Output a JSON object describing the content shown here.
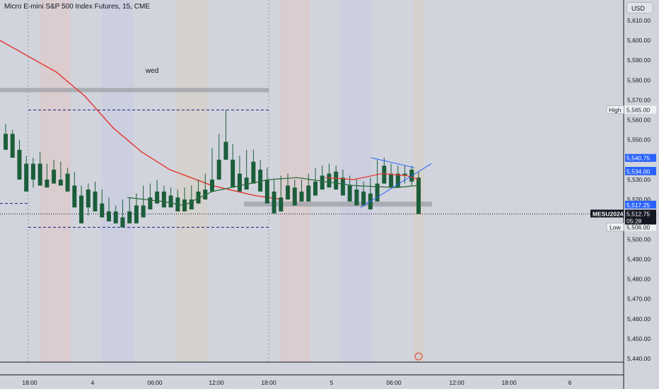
{
  "header": {
    "title": "Micro E-mini S&P 500 Index Futures, 15, CME",
    "currency_button": "USD"
  },
  "annotations": {
    "session_label": "wed",
    "high_label": "High",
    "low_label": "Low",
    "symbol_tag": "MESU2024",
    "countdown": "05:28"
  },
  "colors": {
    "background": "#d1d4dc",
    "up_candle": "#1b5e3a",
    "down_candle": "#1b5e3a",
    "ma_red": "#e53935",
    "ma_green": "#2e6b3a",
    "box_gray": "#9a9ca3",
    "trend_blue": "#2962ff",
    "tag_blue": "#2962ff",
    "tag_black": "#131722",
    "band_red": "#dcc9cc",
    "band_blue": "#c9cde0",
    "band_tan": "#d6d0c8"
  },
  "chart_data": {
    "type": "candlestick",
    "title": "Micro E-mini S&P 500 Index Futures, 15, CME",
    "y_axis": {
      "min": 5440,
      "max": 5610,
      "tick_step": 10,
      "ticks": [
        "5,610.00",
        "5,600.00",
        "5,590.00",
        "5,580.00",
        "5,570.00",
        "5,560.00",
        "5,550.00",
        "5,540.00",
        "5,530.00",
        "5,520.00",
        "5,510.00",
        "5,500.00",
        "5,490.00",
        "5,480.00",
        "5,470.00",
        "5,460.00",
        "5,450.00",
        "5,440.00"
      ]
    },
    "x_axis": {
      "ticks": [
        "18:00",
        "4",
        "06:00",
        "12:00",
        "18:00",
        "5",
        "06:00",
        "12:00",
        "18:00",
        "6"
      ]
    },
    "price_tags": [
      {
        "label": "5,565.00",
        "value": 5565,
        "style": "plain"
      },
      {
        "label": "5,540.75",
        "value": 5540.75,
        "style": "blue"
      },
      {
        "label": "5,534.25",
        "value": 5534.25,
        "style": "blue"
      },
      {
        "label": "5,534.00",
        "value": 5534,
        "style": "blue"
      },
      {
        "label": "5,517.25",
        "value": 5517.25,
        "style": "blue"
      },
      {
        "label": "5,512.75",
        "value": 5512.75,
        "style": "black"
      },
      {
        "label": "5,506.00",
        "value": 5506,
        "style": "plain"
      }
    ],
    "levels": {
      "high": 5565,
      "low": 5506,
      "last": 5512.75
    },
    "candles": [
      [
        5553,
        5558,
        5548,
        5545
      ],
      [
        5553,
        5555,
        5545,
        5541
      ],
      [
        5545,
        5550,
        5538,
        5530
      ],
      [
        5538,
        5542,
        5530,
        5524
      ],
      [
        5530,
        5541,
        5526,
        5538
      ],
      [
        5538,
        5544,
        5530,
        5527
      ],
      [
        5530,
        5538,
        5527,
        5526
      ],
      [
        5535,
        5540,
        5530,
        5528
      ],
      [
        5530,
        5539,
        5528,
        5527
      ],
      [
        5533,
        5536,
        5527,
        5524
      ],
      [
        5527,
        5534,
        5522,
        5516
      ],
      [
        5522,
        5527,
        5514,
        5508
      ],
      [
        5516,
        5528,
        5512,
        5525
      ],
      [
        5524,
        5529,
        5517,
        5514
      ],
      [
        5518,
        5525,
        5514,
        5511
      ],
      [
        5514,
        5521,
        5510,
        5509
      ],
      [
        5514,
        5517,
        5509,
        5508
      ],
      [
        5511,
        5520,
        5508,
        5506
      ],
      [
        5514,
        5521,
        5510,
        5508
      ],
      [
        5517,
        5523,
        5511,
        5508
      ],
      [
        5517,
        5527,
        5514,
        5511
      ],
      [
        5521,
        5528,
        5518,
        5515
      ],
      [
        5524,
        5530,
        5521,
        5518
      ],
      [
        5524,
        5527,
        5520,
        5516
      ],
      [
        5522,
        5526,
        5519,
        5516
      ],
      [
        5521,
        5525,
        5517,
        5514
      ],
      [
        5520,
        5526,
        5517,
        5514
      ],
      [
        5520,
        5527,
        5518,
        5515
      ],
      [
        5524,
        5530,
        5521,
        5518
      ],
      [
        5525,
        5533,
        5522,
        5520
      ],
      [
        5530,
        5546,
        5527,
        5524
      ],
      [
        5540,
        5553,
        5536,
        5530
      ],
      [
        5549,
        5565,
        5545,
        5540
      ],
      [
        5540,
        5548,
        5530,
        5526
      ],
      [
        5533,
        5542,
        5528,
        5524
      ],
      [
        5531,
        5545,
        5528,
        5525
      ],
      [
        5539,
        5545,
        5532,
        5528
      ],
      [
        5535,
        5540,
        5528,
        5524
      ],
      [
        5530,
        5536,
        5524,
        5518
      ],
      [
        5524,
        5530,
        5517,
        5513
      ],
      [
        5521,
        5532,
        5518,
        5514
      ],
      [
        5527,
        5533,
        5522,
        5520
      ],
      [
        5526,
        5530,
        5520,
        5517
      ],
      [
        5524,
        5530,
        5521,
        5519
      ],
      [
        5527,
        5533,
        5523,
        5519
      ],
      [
        5529,
        5536,
        5526,
        5522
      ],
      [
        5532,
        5537,
        5528,
        5525
      ],
      [
        5533,
        5538,
        5529,
        5526
      ],
      [
        5534,
        5537,
        5528,
        5525
      ],
      [
        5531,
        5535,
        5525,
        5522
      ],
      [
        5527,
        5532,
        5522,
        5519
      ],
      [
        5525,
        5530,
        5520,
        5517
      ],
      [
        5524,
        5529,
        5519,
        5517
      ],
      [
        5523,
        5531,
        5519,
        5515
      ],
      [
        5528,
        5540,
        5525,
        5519
      ],
      [
        5537,
        5541,
        5530,
        5528
      ],
      [
        5533,
        5538,
        5528,
        5526
      ],
      [
        5533,
        5537,
        5527,
        5526
      ],
      [
        5533,
        5537,
        5528,
        5532
      ],
      [
        5535,
        5537,
        5527,
        5529
      ],
      [
        5531,
        5534,
        5524,
        5512.75
      ]
    ]
  }
}
